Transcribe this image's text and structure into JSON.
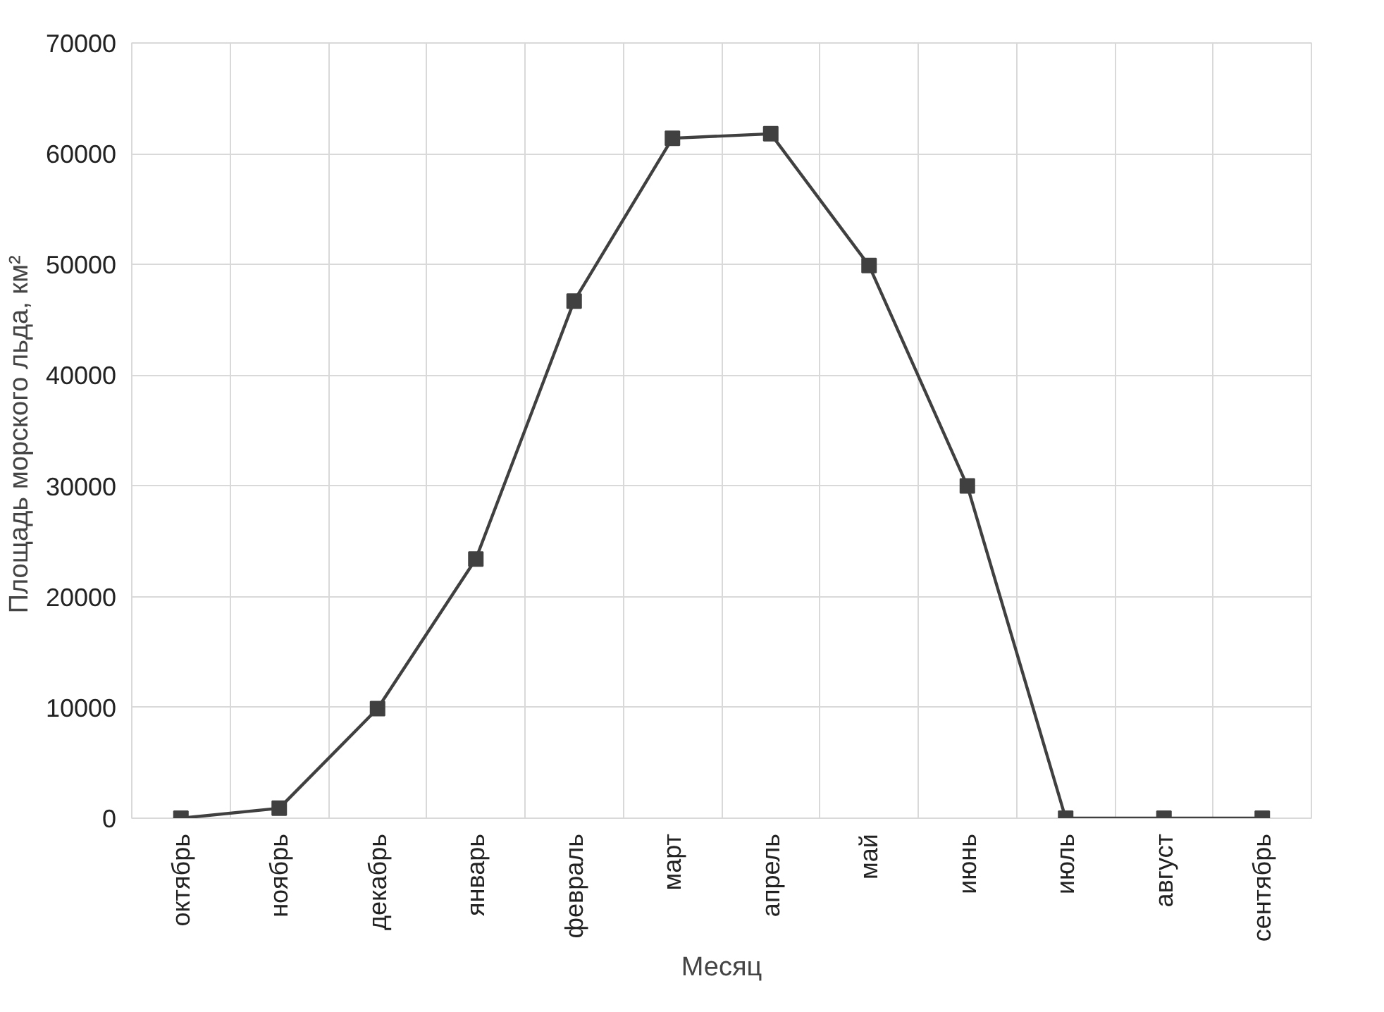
{
  "chart_data": {
    "type": "line",
    "xlabel": "Месяц",
    "ylabel": "Площадь  морского льда, км²",
    "categories": [
      "октябрь",
      "ноябрь",
      "декабрь",
      "январь",
      "февраль",
      "март",
      "апрель",
      "май",
      "июнь",
      "июль",
      "август",
      "сентябрь"
    ],
    "series": [
      {
        "color": "#404040",
        "values": [
          0,
          900,
          9900,
          23400,
          46700,
          61400,
          61800,
          49900,
          30000,
          0,
          0,
          0
        ]
      }
    ],
    "ylim": [
      0,
      70000
    ],
    "yticks": [
      0,
      10000,
      20000,
      30000,
      40000,
      50000,
      60000,
      70000
    ],
    "grid": true,
    "marker": "square",
    "line_style": "solid"
  }
}
